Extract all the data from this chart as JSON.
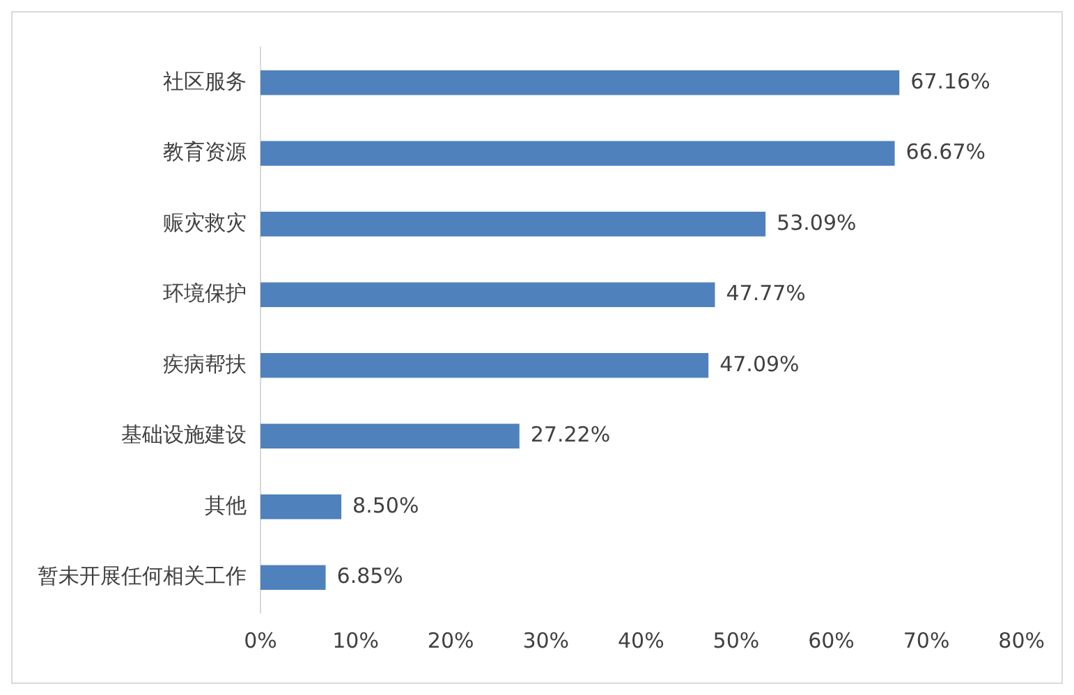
{
  "chart_data": {
    "type": "bar",
    "orientation": "horizontal",
    "categories": [
      "社区服务",
      "教育资源",
      "赈灾救灾",
      "环境保护",
      "疾病帮扶",
      "基础设施建设",
      "其他",
      "暂未开展任何相关工作"
    ],
    "values": [
      67.16,
      66.67,
      53.09,
      47.77,
      47.09,
      27.22,
      8.5,
      6.85
    ],
    "value_labels": [
      "67.16%",
      "66.67%",
      "53.09%",
      "47.77%",
      "47.09%",
      "27.22%",
      "8.50%",
      "6.85%"
    ],
    "color": "#4f81bd",
    "xlim": [
      0,
      80
    ],
    "xticks": [
      {
        "value": 0,
        "label": "0%"
      },
      {
        "value": 10,
        "label": "10%"
      },
      {
        "value": 20,
        "label": "20%"
      },
      {
        "value": 30,
        "label": "30%"
      },
      {
        "value": 40,
        "label": "40%"
      },
      {
        "value": 50,
        "label": "50%"
      },
      {
        "value": 60,
        "label": "60%"
      },
      {
        "value": 70,
        "label": "70%"
      },
      {
        "value": 80,
        "label": "80%"
      }
    ],
    "grid": false,
    "legend": false
  }
}
